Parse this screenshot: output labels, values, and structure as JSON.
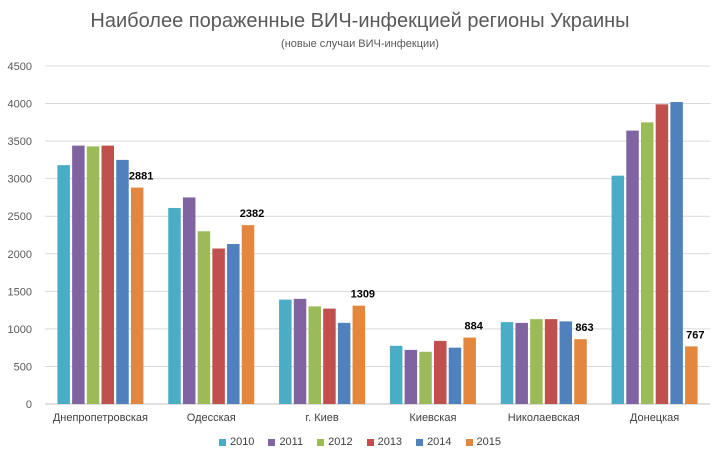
{
  "chart_data": {
    "type": "bar",
    "title": "Наиболее пораженные ВИЧ-инфекцией  регионы Украины",
    "subtitle": "(новые случаи ВИЧ-инфекции)",
    "xlabel": "",
    "ylabel": "",
    "ylim": [
      0,
      4500
    ],
    "yticks": [
      "0",
      "500",
      "1000",
      "1500",
      "2000",
      "2500",
      "3000",
      "3500",
      "4000",
      "4500"
    ],
    "grid": true,
    "legend_position": "bottom",
    "categories": [
      "Днепропетровская",
      "Одесская",
      "г. Киев",
      "Киевская",
      "Николаевская",
      "Донецкая"
    ],
    "series": [
      {
        "name": "2010",
        "color": "#4BACC6",
        "values": [
          3180,
          2610,
          1390,
          775,
          1090,
          3040
        ]
      },
      {
        "name": "2011",
        "color": "#8064A2",
        "values": [
          3440,
          2750,
          1400,
          720,
          1080,
          3640
        ]
      },
      {
        "name": "2012",
        "color": "#9BBB59",
        "values": [
          3430,
          2300,
          1300,
          695,
          1130,
          3750
        ]
      },
      {
        "name": "2013",
        "color": "#C0504D",
        "values": [
          3440,
          2070,
          1270,
          840,
          1130,
          3990
        ]
      },
      {
        "name": "2014",
        "color": "#4F81BD",
        "values": [
          3250,
          2130,
          1080,
          750,
          1100,
          4020
        ]
      },
      {
        "name": "2015",
        "color": "#E2873D",
        "values": [
          2881,
          2382,
          1309,
          884,
          863,
          767
        ]
      }
    ],
    "data_labels": {
      "series": "2015",
      "values": [
        "2881",
        "2382",
        "1309",
        "884",
        "863",
        "767"
      ]
    }
  }
}
